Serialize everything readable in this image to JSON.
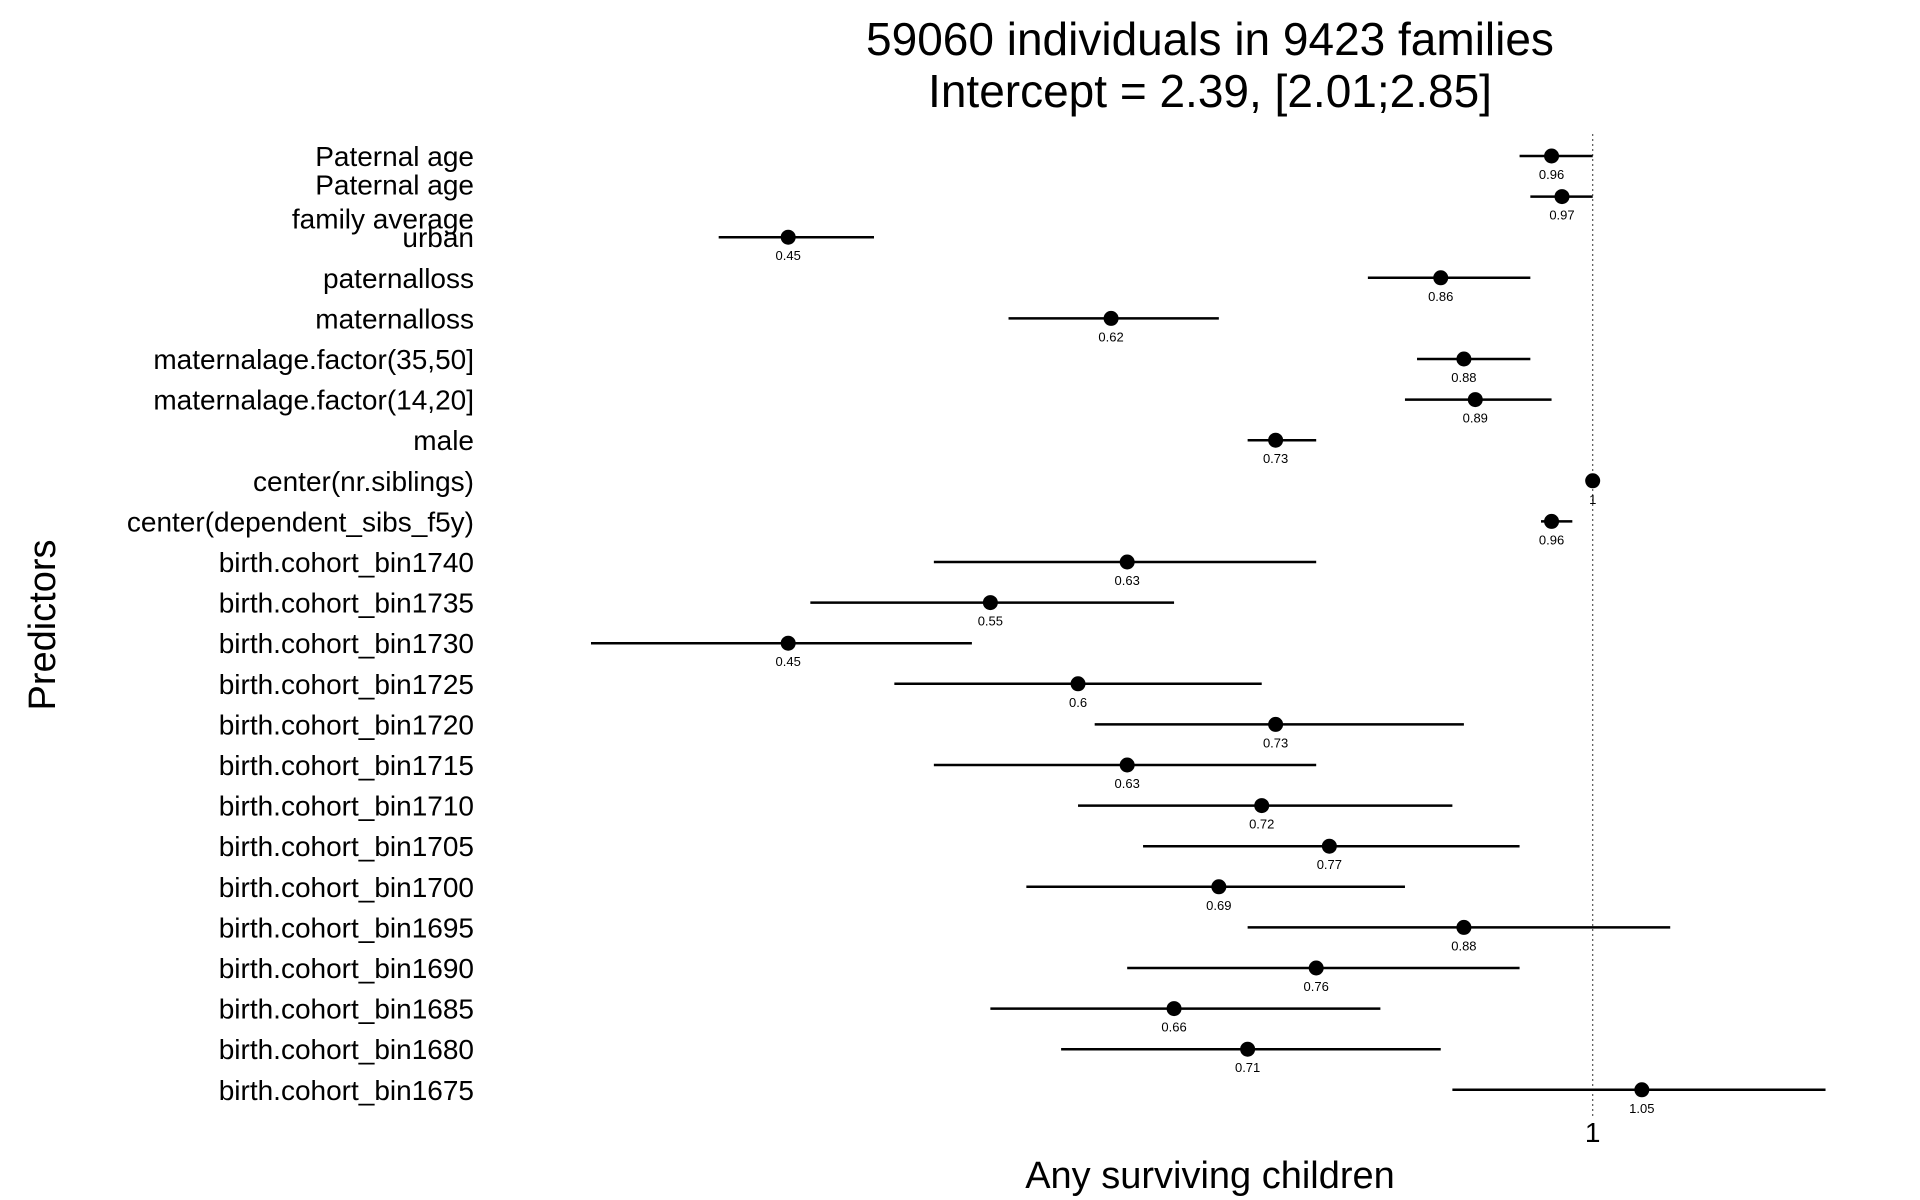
{
  "chart_data": {
    "type": "scatter",
    "title": "59060 individuals in 9423 families",
    "subtitle": "Intercept = 2.39, [2.01;2.85]",
    "xlabel": "Any surviving children",
    "ylabel": "Predictors",
    "xscale": "log",
    "xlim": [
      0.35,
      1.33
    ],
    "xticks": [
      {
        "value": 1,
        "label": "1"
      }
    ],
    "reference_line": 1,
    "grid": false,
    "legend": "none",
    "predictors": [
      {
        "label": [
          "Paternal age"
        ],
        "estimate": 0.96,
        "value_label": "0.96",
        "ci": [
          0.93,
          1.0
        ]
      },
      {
        "label": [
          "Paternal age",
          "family average"
        ],
        "estimate": 0.97,
        "value_label": "0.97",
        "ci": [
          0.94,
          1.0
        ]
      },
      {
        "label": [
          "urban"
        ],
        "estimate": 0.45,
        "value_label": "0.45",
        "ci": [
          0.42,
          0.49
        ]
      },
      {
        "label": [
          "paternalloss"
        ],
        "estimate": 0.86,
        "value_label": "0.86",
        "ci": [
          0.8,
          0.94
        ]
      },
      {
        "label": [
          "maternalloss"
        ],
        "estimate": 0.62,
        "value_label": "0.62",
        "ci": [
          0.56,
          0.69
        ]
      },
      {
        "label": [
          "maternalage.factor(35,50]"
        ],
        "estimate": 0.88,
        "value_label": "0.88",
        "ci": [
          0.84,
          0.94
        ]
      },
      {
        "label": [
          "maternalage.factor(14,20]"
        ],
        "estimate": 0.89,
        "value_label": "0.89",
        "ci": [
          0.83,
          0.96
        ]
      },
      {
        "label": [
          "male"
        ],
        "estimate": 0.73,
        "value_label": "0.73",
        "ci": [
          0.71,
          0.76
        ]
      },
      {
        "label": [
          "center(nr.siblings)"
        ],
        "estimate": 1.0,
        "value_label": "1",
        "ci": [
          0.995,
          1.005
        ]
      },
      {
        "label": [
          "center(dependent_sibs_f5y)"
        ],
        "estimate": 0.96,
        "value_label": "0.96",
        "ci": [
          0.95,
          0.98
        ]
      },
      {
        "label": [
          "birth.cohort_bin1740"
        ],
        "estimate": 0.63,
        "value_label": "0.63",
        "ci": [
          0.52,
          0.76
        ]
      },
      {
        "label": [
          "birth.cohort_bin1735"
        ],
        "estimate": 0.55,
        "value_label": "0.55",
        "ci": [
          0.46,
          0.66
        ]
      },
      {
        "label": [
          "birth.cohort_bin1730"
        ],
        "estimate": 0.45,
        "value_label": "0.45",
        "ci": [
          0.37,
          0.54
        ]
      },
      {
        "label": [
          "birth.cohort_bin1725"
        ],
        "estimate": 0.6,
        "value_label": "0.6",
        "ci": [
          0.5,
          0.72
        ]
      },
      {
        "label": [
          "birth.cohort_bin1720"
        ],
        "estimate": 0.73,
        "value_label": "0.73",
        "ci": [
          0.61,
          0.88
        ]
      },
      {
        "label": [
          "birth.cohort_bin1715"
        ],
        "estimate": 0.63,
        "value_label": "0.63",
        "ci": [
          0.52,
          0.76
        ]
      },
      {
        "label": [
          "birth.cohort_bin1710"
        ],
        "estimate": 0.72,
        "value_label": "0.72",
        "ci": [
          0.6,
          0.87
        ]
      },
      {
        "label": [
          "birth.cohort_bin1705"
        ],
        "estimate": 0.77,
        "value_label": "0.77",
        "ci": [
          0.64,
          0.93
        ]
      },
      {
        "label": [
          "birth.cohort_bin1700"
        ],
        "estimate": 0.69,
        "value_label": "0.69",
        "ci": [
          0.57,
          0.83
        ]
      },
      {
        "label": [
          "birth.cohort_bin1695"
        ],
        "estimate": 0.88,
        "value_label": "0.88",
        "ci": [
          0.71,
          1.08
        ]
      },
      {
        "label": [
          "birth.cohort_bin1690"
        ],
        "estimate": 0.76,
        "value_label": "0.76",
        "ci": [
          0.63,
          0.93
        ]
      },
      {
        "label": [
          "birth.cohort_bin1685"
        ],
        "estimate": 0.66,
        "value_label": "0.66",
        "ci": [
          0.55,
          0.81
        ]
      },
      {
        "label": [
          "birth.cohort_bin1680"
        ],
        "estimate": 0.71,
        "value_label": "0.71",
        "ci": [
          0.59,
          0.86
        ]
      },
      {
        "label": [
          "birth.cohort_bin1675"
        ],
        "estimate": 1.05,
        "value_label": "1.05",
        "ci": [
          0.87,
          1.26
        ]
      }
    ]
  }
}
